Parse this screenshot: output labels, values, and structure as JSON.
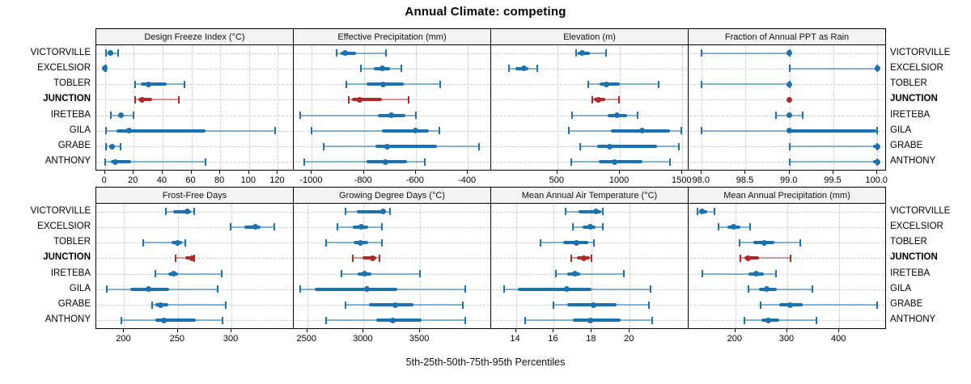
{
  "title": "Annual Climate: competing",
  "caption": "5th-25th-50th-75th-95th Percentiles",
  "colors": {
    "series": "#1a72b0",
    "series_light": "rgba(26,114,176,0.5)",
    "highlight": "#b22828",
    "highlight_light": "rgba(178,40,40,0.45)",
    "grid": "#cccccc",
    "strip_bg": "#f3f3f3",
    "border": "#000000"
  },
  "chart_data": {
    "type": "dotplot-percentiles",
    "percentiles": [
      5,
      25,
      50,
      75,
      95
    ],
    "sites": [
      "VICTORVILLE",
      "EXCELSIOR",
      "TOBLER",
      "JUNCTION",
      "IRETEBA",
      "GILA",
      "GRABE",
      "ANTHONY"
    ],
    "highlight_site": "JUNCTION",
    "legend": "none",
    "grid": "dashed",
    "panels": [
      {
        "label": "Design Freeze Index (°C)",
        "band": 0,
        "col": 0,
        "domain": [
          -6,
          131
        ],
        "tick_values": [
          0,
          20,
          40,
          60,
          80,
          100,
          120
        ],
        "tick_labels": [
          "0",
          "20",
          "40",
          "60",
          "80",
          "100",
          "120"
        ],
        "values": {
          "VICTORVILLE": [
            1,
            2,
            4,
            6,
            9
          ],
          "EXCELSIOR": [
            0,
            0,
            0,
            0,
            1
          ],
          "TOBLER": [
            21,
            25,
            30,
            43,
            55
          ],
          "JUNCTION": [
            21,
            23,
            26,
            33,
            51
          ],
          "IRETEBA": [
            4,
            9,
            11,
            13,
            20
          ],
          "GILA": [
            1,
            8,
            17,
            70,
            118
          ],
          "GRABE": [
            1,
            3,
            5,
            7,
            11
          ],
          "ANTHONY": [
            0,
            4,
            7,
            18,
            70
          ]
        }
      },
      {
        "label": "Effective Precipitation (mm)",
        "band": 0,
        "col": 1,
        "domain": [
          -1070,
          -310
        ],
        "tick_values": [
          -1000,
          -800,
          -600,
          -400
        ],
        "tick_labels": [
          "-1000",
          "-800",
          "-600",
          "-400"
        ],
        "values": {
          "VICTORVILLE": [
            -905,
            -890,
            -872,
            -830,
            -715
          ],
          "EXCELSIOR": [
            -810,
            -762,
            -730,
            -700,
            -655
          ],
          "TOBLER": [
            -868,
            -790,
            -725,
            -645,
            -505
          ],
          "JUNCTION": [
            -858,
            -845,
            -815,
            -730,
            -627
          ],
          "IRETEBA": [
            -1045,
            -745,
            -695,
            -640,
            -600
          ],
          "GILA": [
            -1000,
            -730,
            -600,
            -550,
            -508
          ],
          "GRABE": [
            -955,
            -755,
            -710,
            -520,
            -357
          ],
          "ANTHONY": [
            -1030,
            -790,
            -715,
            -635,
            -565
          ]
        }
      },
      {
        "label": "Elevation (m)",
        "band": 0,
        "col": 2,
        "domain": [
          -30,
          1550
        ],
        "tick_values": [
          500,
          1000,
          1500
        ],
        "tick_labels": [
          "500",
          "1000",
          "1500"
        ],
        "values": {
          "VICTORVILLE": [
            650,
            665,
            700,
            760,
            890
          ],
          "EXCELSIOR": [
            110,
            165,
            230,
            270,
            340
          ],
          "TOBLER": [
            750,
            840,
            890,
            1000,
            1310
          ],
          "JUNCTION": [
            780,
            790,
            830,
            880,
            990
          ],
          "IRETEBA": [
            620,
            900,
            980,
            1060,
            1140
          ],
          "GILA": [
            590,
            930,
            1180,
            1400,
            1490
          ],
          "GRABE": [
            680,
            820,
            920,
            1300,
            1470
          ],
          "ANTHONY": [
            610,
            830,
            960,
            1180,
            1400
          ]
        }
      },
      {
        "label": "Fraction of Annual PPT as Rain",
        "band": 0,
        "col": 3,
        "domain": [
          97.85,
          100.1
        ],
        "tick_values": [
          98.0,
          98.5,
          99.0,
          99.5,
          100.0
        ],
        "tick_labels": [
          "98.0",
          "98.5",
          "99.0",
          "99.5",
          "100.0"
        ],
        "values": {
          "VICTORVILLE": [
            98.0,
            98.99,
            99.0,
            99.0,
            99.0
          ],
          "EXCELSIOR": [
            99.0,
            99.97,
            100.0,
            100.0,
            100.0
          ],
          "TOBLER": [
            98.0,
            98.99,
            99.0,
            99.0,
            99.0
          ],
          "JUNCTION": [
            99.0,
            99.0,
            99.0,
            99.0,
            99.0
          ],
          "IRETEBA": [
            98.85,
            98.98,
            99.0,
            99.02,
            99.15
          ],
          "GILA": [
            98.0,
            98.99,
            99.0,
            99.99,
            100.0
          ],
          "GRABE": [
            99.0,
            99.95,
            100.0,
            100.0,
            100.0
          ],
          "ANTHONY": [
            99.0,
            99.95,
            100.0,
            100.0,
            100.0
          ]
        }
      },
      {
        "label": "Frost-Free Days",
        "band": 1,
        "col": 0,
        "domain": [
          174,
          358
        ],
        "tick_values": [
          200,
          250,
          300
        ],
        "tick_labels": [
          "200",
          "250",
          "300"
        ],
        "values": {
          "VICTORVILLE": [
            239,
            246,
            259,
            262,
            265
          ],
          "EXCELSIOR": [
            299,
            312,
            322,
            327,
            340
          ],
          "TOBLER": [
            218,
            244,
            250,
            254,
            257
          ],
          "JUNCTION": [
            248,
            257,
            263,
            264,
            265
          ],
          "IRETEBA": [
            229,
            241,
            246,
            250,
            291
          ],
          "GILA": [
            184,
            206,
            223,
            242,
            287
          ],
          "GRABE": [
            226,
            229,
            234,
            241,
            295
          ],
          "ANTHONY": [
            197,
            229,
            237,
            267,
            292
          ]
        }
      },
      {
        "label": "Growing Degree Days (°C)",
        "band": 1,
        "col": 1,
        "domain": [
          2380,
          4130
        ],
        "tick_values": [
          2500,
          3000,
          3500
        ],
        "tick_labels": [
          "2500",
          "3000",
          "3500"
        ],
        "values": {
          "VICTORVILLE": [
            2840,
            2940,
            3170,
            3200,
            3230
          ],
          "EXCELSIOR": [
            2770,
            2900,
            2980,
            3040,
            3160
          ],
          "TOBLER": [
            2670,
            2910,
            2970,
            3040,
            3160
          ],
          "JUNCTION": [
            2900,
            2990,
            3080,
            3110,
            3140
          ],
          "IRETEBA": [
            2800,
            2950,
            3010,
            3070,
            3500
          ],
          "GILA": [
            2440,
            2570,
            3030,
            3300,
            3900
          ],
          "GRABE": [
            2840,
            3050,
            3280,
            3440,
            3880
          ],
          "ANTHONY": [
            2670,
            3110,
            3260,
            3510,
            3900
          ]
        }
      },
      {
        "label": "Mean Annual Air Temperature (°C)",
        "band": 1,
        "col": 2,
        "domain": [
          12.7,
          23.1
        ],
        "tick_values": [
          14,
          16,
          18,
          20
        ],
        "tick_labels": [
          "14",
          "16",
          "18",
          "20"
        ],
        "values": {
          "VICTORVILLE": [
            16.6,
            17.3,
            18.2,
            18.5,
            18.6
          ],
          "EXCELSIOR": [
            17.0,
            17.5,
            17.9,
            18.2,
            18.6
          ],
          "TOBLER": [
            15.3,
            16.5,
            17.2,
            17.8,
            18.1
          ],
          "JUNCTION": [
            16.9,
            17.2,
            17.6,
            17.9,
            18.0
          ],
          "IRETEBA": [
            16.1,
            16.7,
            17.1,
            17.4,
            19.7
          ],
          "GILA": [
            13.4,
            14.1,
            16.7,
            18.0,
            21.1
          ],
          "GRABE": [
            16.0,
            16.7,
            18.1,
            19.3,
            21.0
          ],
          "ANTHONY": [
            14.5,
            17.0,
            17.9,
            19.5,
            21.2
          ]
        }
      },
      {
        "label": "Mean Annual Precipitation (mm)",
        "band": 1,
        "col": 3,
        "domain": [
          110,
          490
        ],
        "tick_values": [
          200,
          300,
          400
        ],
        "tick_labels": [
          "200",
          "300",
          "400"
        ],
        "values": {
          "VICTORVILLE": [
            127,
            130,
            135,
            146,
            160
          ],
          "EXCELSIOR": [
            168,
            185,
            197,
            210,
            229
          ],
          "TOBLER": [
            208,
            235,
            255,
            275,
            325
          ],
          "JUNCTION": [
            210,
            218,
            224,
            245,
            306
          ],
          "IRETEBA": [
            137,
            225,
            240,
            255,
            278
          ],
          "GILA": [
            226,
            245,
            261,
            280,
            349
          ],
          "GRABE": [
            248,
            285,
            306,
            330,
            473
          ],
          "ANTHONY": [
            218,
            250,
            264,
            285,
            356
          ]
        }
      }
    ]
  }
}
